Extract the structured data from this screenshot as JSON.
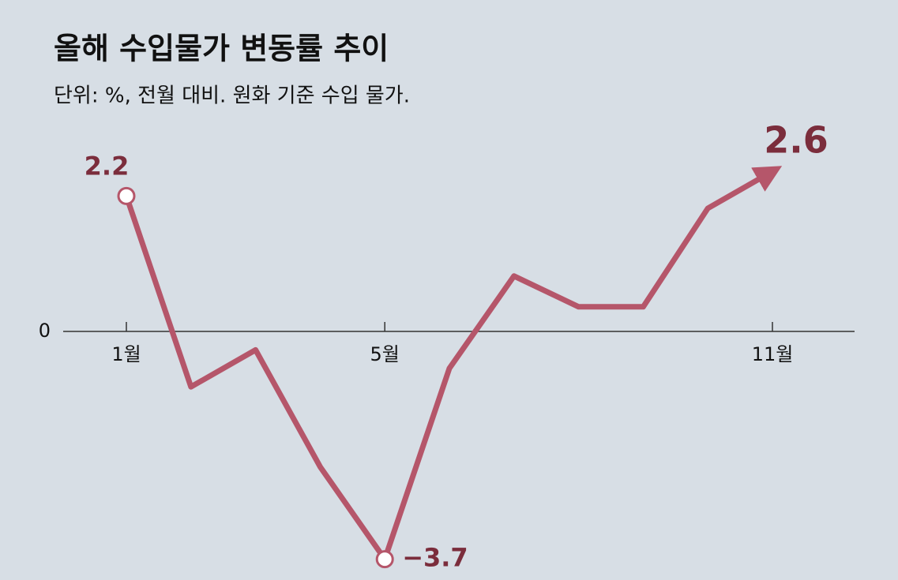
{
  "chart_data": {
    "type": "line",
    "title": "올해 수입물가 변동률 추이",
    "subtitle": "단위: %, 전월 대비. 원화 기준 수입 물가.",
    "categories": [
      "1월",
      null,
      null,
      null,
      "5월",
      null,
      null,
      null,
      null,
      null,
      "11월"
    ],
    "series": [
      {
        "color": "#b5566a",
        "values": [
          2.2,
          -0.9,
          -0.3,
          -2.2,
          -3.7,
          -0.6,
          0.9,
          0.4,
          0.4,
          2.0,
          2.6
        ],
        "value_labels": [
          "2.2",
          null,
          null,
          null,
          "−3.7",
          null,
          null,
          null,
          null,
          null,
          "2.6"
        ]
      }
    ],
    "ylim": [
      -4,
      3
    ],
    "yticks": [
      0
    ],
    "grid": false
  }
}
